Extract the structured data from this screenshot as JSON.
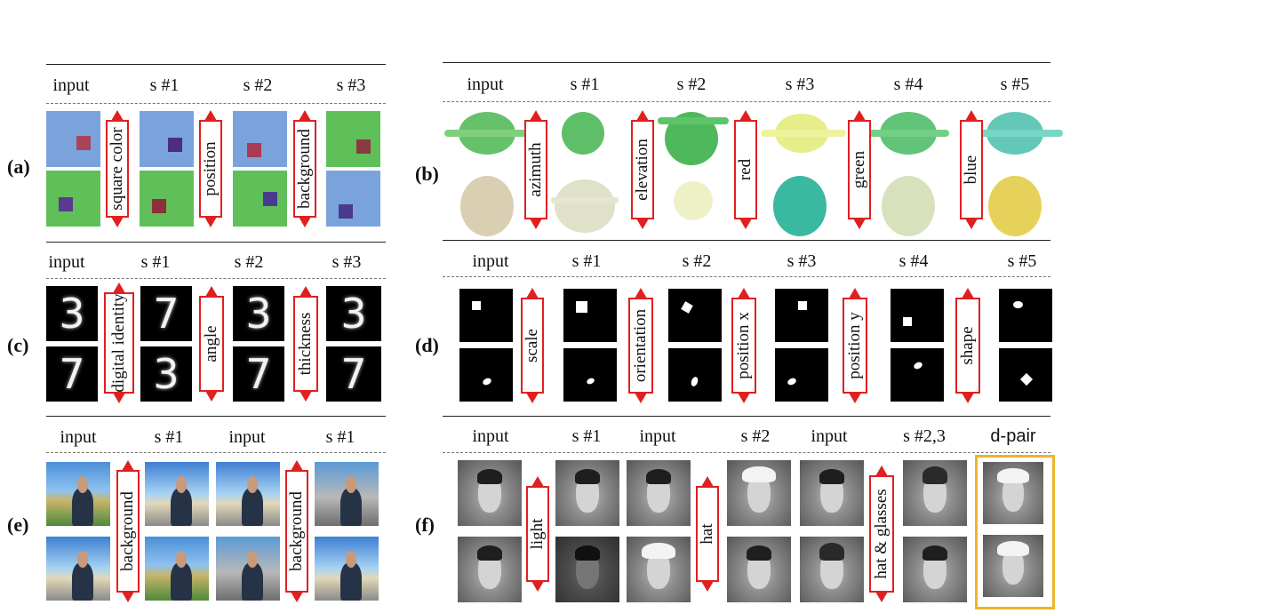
{
  "panels": {
    "a": {
      "label": "(a)",
      "headers": [
        "input",
        "s #1",
        "s #2",
        "s #3"
      ],
      "arrows": [
        "square color",
        "position",
        "background"
      ]
    },
    "b": {
      "label": "(b)",
      "headers": [
        "input",
        "s #1",
        "s #2",
        "s #3",
        "s #4",
        "s #5"
      ],
      "arrows": [
        "azimuth",
        "elevation",
        "red",
        "green",
        "blue"
      ]
    },
    "c": {
      "label": "(c)",
      "headers": [
        "input",
        "s #1",
        "s #2",
        "s #3"
      ],
      "arrows": [
        "digital identity",
        "angle",
        "thickness"
      ],
      "digits_top": [
        "3",
        "7",
        "3",
        "3"
      ],
      "digits_bottom": [
        "7",
        "3",
        "7",
        "7"
      ]
    },
    "d": {
      "label": "(d)",
      "headers": [
        "input",
        "s #1",
        "s #2",
        "s #3",
        "s #4",
        "s #5"
      ],
      "arrows": [
        "scale",
        "orientation",
        "position x",
        "position y",
        "shape"
      ]
    },
    "e": {
      "label": "(e)",
      "headers": [
        "input",
        "s #1",
        "input",
        "s #1"
      ],
      "arrows": [
        "background",
        "background"
      ]
    },
    "f": {
      "label": "(f)",
      "headers": [
        "input",
        "s #1",
        "input",
        "s #2",
        "input",
        "s #2,3",
        "d-pair"
      ],
      "arrows": [
        "light",
        "hat",
        "hat  & glasses"
      ]
    }
  },
  "colors": {
    "arrow": "#e02020",
    "highlight": "#f0b429",
    "blue_bg": "#7aa3db",
    "green_bg": "#5fc05a"
  }
}
